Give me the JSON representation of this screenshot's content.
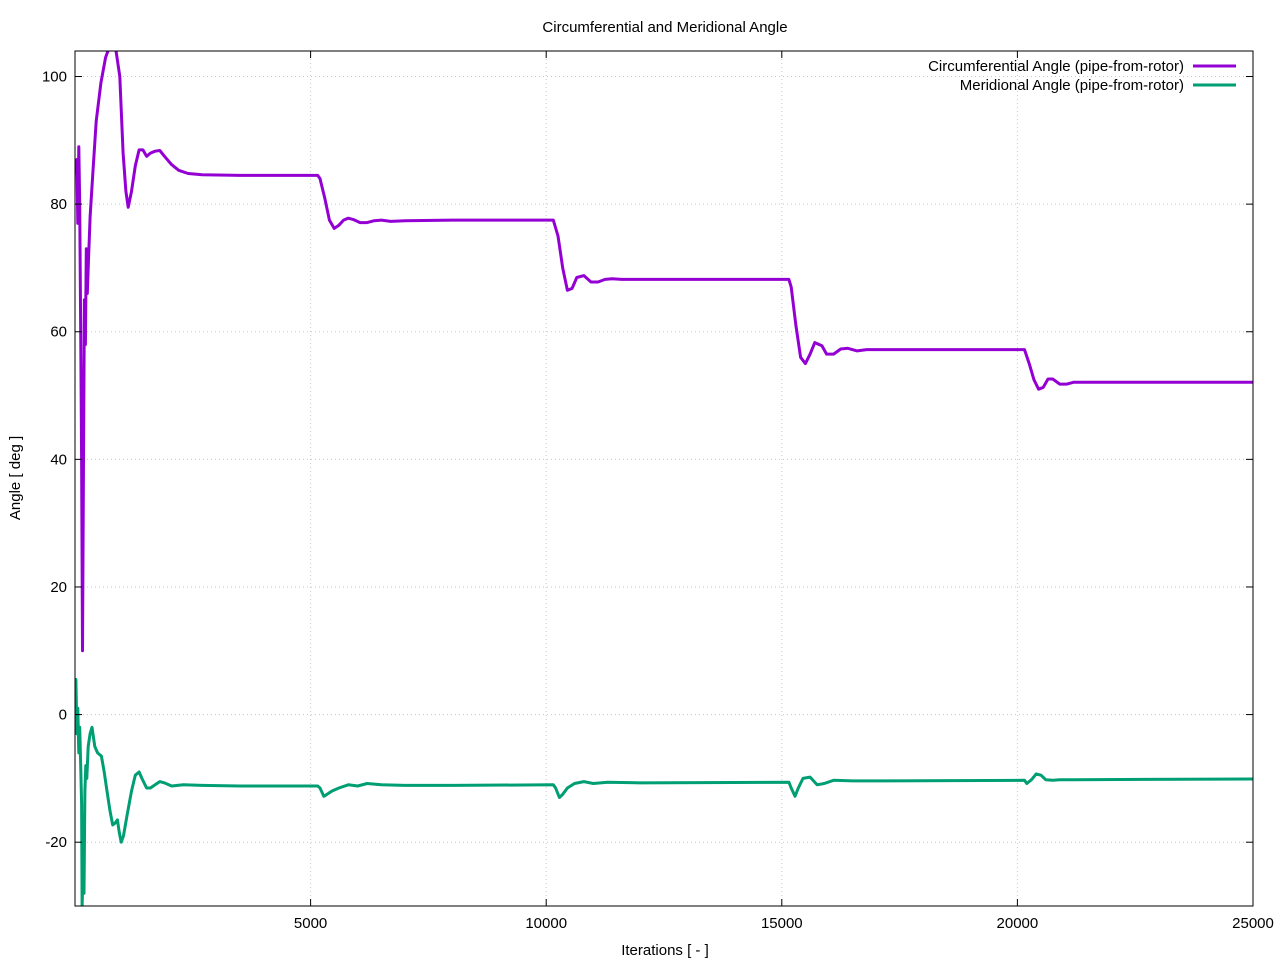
{
  "chart_data": {
    "type": "line",
    "title": "Circumferential and Meridional Angle",
    "xlabel": "Iterations [ - ]",
    "ylabel": "Angle [ deg ]",
    "xlim": [
      0,
      25000
    ],
    "ylim": [
      -30,
      104
    ],
    "x_ticks": [
      {
        "value": 5000,
        "label": "5000"
      },
      {
        "value": 10000,
        "label": "10000"
      },
      {
        "value": 15000,
        "label": "15000"
      },
      {
        "value": 20000,
        "label": "20000"
      },
      {
        "value": 25000,
        "label": "25000"
      }
    ],
    "y_ticks": [
      {
        "value": -20,
        "label": "-20"
      },
      {
        "value": 0,
        "label": "0"
      },
      {
        "value": 20,
        "label": "20"
      },
      {
        "value": 40,
        "label": "40"
      },
      {
        "value": 60,
        "label": "60"
      },
      {
        "value": 80,
        "label": "80"
      },
      {
        "value": 100,
        "label": "100"
      }
    ],
    "grid": true,
    "legend_position": "top-right",
    "series": [
      {
        "name": "Circumferential Angle (pipe-from-rotor)",
        "color": "#9400d3",
        "points": [
          [
            0,
            85
          ],
          [
            40,
            87
          ],
          [
            60,
            77
          ],
          [
            80,
            89
          ],
          [
            100,
            80
          ],
          [
            120,
            60
          ],
          [
            140,
            40
          ],
          [
            160,
            10
          ],
          [
            180,
            40
          ],
          [
            200,
            65
          ],
          [
            220,
            58
          ],
          [
            240,
            73
          ],
          [
            260,
            66
          ],
          [
            280,
            70
          ],
          [
            320,
            78
          ],
          [
            380,
            85
          ],
          [
            450,
            93
          ],
          [
            550,
            99
          ],
          [
            650,
            103
          ],
          [
            750,
            105
          ],
          [
            850,
            105
          ],
          [
            950,
            100
          ],
          [
            1020,
            88
          ],
          [
            1080,
            82
          ],
          [
            1130,
            79.5
          ],
          [
            1200,
            82
          ],
          [
            1280,
            86
          ],
          [
            1360,
            88.5
          ],
          [
            1440,
            88.5
          ],
          [
            1520,
            87.5
          ],
          [
            1600,
            88
          ],
          [
            1700,
            88.3
          ],
          [
            1800,
            88.4
          ],
          [
            1900,
            87.5
          ],
          [
            2050,
            86.2
          ],
          [
            2200,
            85.3
          ],
          [
            2400,
            84.8
          ],
          [
            2700,
            84.6
          ],
          [
            3500,
            84.5
          ],
          [
            5150,
            84.5
          ],
          [
            5200,
            84
          ],
          [
            5300,
            81
          ],
          [
            5400,
            77.5
          ],
          [
            5500,
            76.2
          ],
          [
            5600,
            76.7
          ],
          [
            5700,
            77.5
          ],
          [
            5800,
            77.8
          ],
          [
            5900,
            77.6
          ],
          [
            6050,
            77.1
          ],
          [
            6200,
            77.1
          ],
          [
            6350,
            77.4
          ],
          [
            6500,
            77.5
          ],
          [
            6700,
            77.3
          ],
          [
            7000,
            77.4
          ],
          [
            8000,
            77.5
          ],
          [
            10150,
            77.5
          ],
          [
            10250,
            75
          ],
          [
            10350,
            70
          ],
          [
            10450,
            66.5
          ],
          [
            10550,
            66.8
          ],
          [
            10650,
            68.5
          ],
          [
            10800,
            68.8
          ],
          [
            10950,
            67.8
          ],
          [
            11100,
            67.8
          ],
          [
            11250,
            68.2
          ],
          [
            11400,
            68.3
          ],
          [
            11600,
            68.2
          ],
          [
            12500,
            68.2
          ],
          [
            15150,
            68.2
          ],
          [
            15200,
            67
          ],
          [
            15300,
            61
          ],
          [
            15400,
            56
          ],
          [
            15500,
            55
          ],
          [
            15600,
            56.5
          ],
          [
            15700,
            58.3
          ],
          [
            15850,
            57.8
          ],
          [
            15950,
            56.5
          ],
          [
            16100,
            56.5
          ],
          [
            16250,
            57.3
          ],
          [
            16400,
            57.4
          ],
          [
            16600,
            57
          ],
          [
            16800,
            57.2
          ],
          [
            17500,
            57.2
          ],
          [
            20150,
            57.2
          ],
          [
            20250,
            55
          ],
          [
            20350,
            52.5
          ],
          [
            20450,
            51
          ],
          [
            20550,
            51.3
          ],
          [
            20650,
            52.6
          ],
          [
            20750,
            52.6
          ],
          [
            20900,
            51.8
          ],
          [
            21050,
            51.8
          ],
          [
            21200,
            52.1
          ],
          [
            21500,
            52.1
          ],
          [
            22000,
            52.1
          ],
          [
            25000,
            52.1
          ]
        ]
      },
      {
        "name": "Meridional Angle (pipe-from-rotor)",
        "color": "#009e73",
        "points": [
          [
            0,
            5
          ],
          [
            20,
            5.5
          ],
          [
            40,
            -3
          ],
          [
            60,
            1
          ],
          [
            80,
            -6
          ],
          [
            100,
            -2
          ],
          [
            120,
            -8
          ],
          [
            140,
            -14
          ],
          [
            150,
            -30
          ],
          [
            170,
            -25
          ],
          [
            190,
            -28
          ],
          [
            210,
            -12
          ],
          [
            230,
            -8
          ],
          [
            250,
            -10
          ],
          [
            280,
            -5
          ],
          [
            320,
            -3
          ],
          [
            360,
            -2
          ],
          [
            420,
            -5
          ],
          [
            480,
            -6
          ],
          [
            560,
            -6.5
          ],
          [
            620,
            -9
          ],
          [
            680,
            -12
          ],
          [
            740,
            -15
          ],
          [
            800,
            -17.3
          ],
          [
            850,
            -17
          ],
          [
            900,
            -16.5
          ],
          [
            940,
            -18.5
          ],
          [
            980,
            -20
          ],
          [
            1030,
            -19
          ],
          [
            1100,
            -16
          ],
          [
            1200,
            -12
          ],
          [
            1280,
            -9.5
          ],
          [
            1360,
            -9
          ],
          [
            1420,
            -10
          ],
          [
            1520,
            -11.5
          ],
          [
            1600,
            -11.5
          ],
          [
            1700,
            -11
          ],
          [
            1800,
            -10.5
          ],
          [
            1900,
            -10.7
          ],
          [
            2050,
            -11.2
          ],
          [
            2300,
            -11
          ],
          [
            2700,
            -11.1
          ],
          [
            3500,
            -11.2
          ],
          [
            5150,
            -11.2
          ],
          [
            5200,
            -11.5
          ],
          [
            5280,
            -12.8
          ],
          [
            5350,
            -12.5
          ],
          [
            5450,
            -12
          ],
          [
            5600,
            -11.5
          ],
          [
            5800,
            -11
          ],
          [
            6000,
            -11.2
          ],
          [
            6200,
            -10.8
          ],
          [
            6500,
            -11
          ],
          [
            7000,
            -11.1
          ],
          [
            8000,
            -11.1
          ],
          [
            10150,
            -11
          ],
          [
            10200,
            -11.5
          ],
          [
            10280,
            -13
          ],
          [
            10350,
            -12.5
          ],
          [
            10450,
            -11.5
          ],
          [
            10600,
            -10.8
          ],
          [
            10800,
            -10.5
          ],
          [
            11000,
            -10.8
          ],
          [
            11300,
            -10.6
          ],
          [
            12000,
            -10.7
          ],
          [
            15150,
            -10.6
          ],
          [
            15200,
            -11.5
          ],
          [
            15280,
            -12.8
          ],
          [
            15350,
            -11.5
          ],
          [
            15450,
            -10
          ],
          [
            15600,
            -9.8
          ],
          [
            15750,
            -11
          ],
          [
            15900,
            -10.8
          ],
          [
            16100,
            -10.3
          ],
          [
            16500,
            -10.4
          ],
          [
            17000,
            -10.4
          ],
          [
            20150,
            -10.3
          ],
          [
            20200,
            -10.8
          ],
          [
            20300,
            -10.2
          ],
          [
            20400,
            -9.3
          ],
          [
            20500,
            -9.5
          ],
          [
            20600,
            -10.2
          ],
          [
            20750,
            -10.3
          ],
          [
            20900,
            -10.2
          ],
          [
            21200,
            -10.2
          ],
          [
            25000,
            -10.1
          ]
        ]
      }
    ]
  }
}
